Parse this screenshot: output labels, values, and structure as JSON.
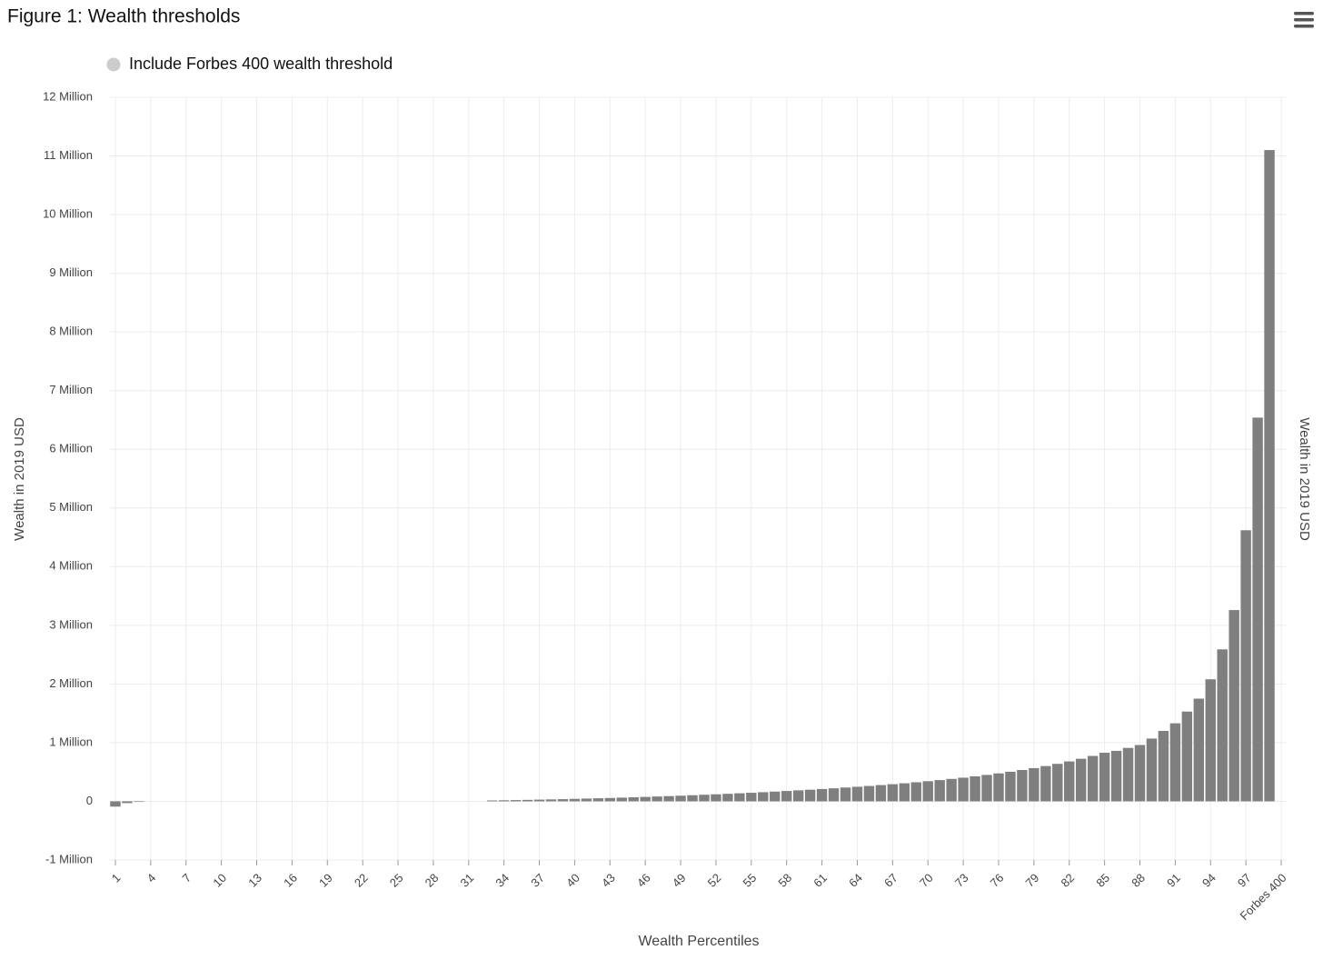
{
  "chart_data": {
    "type": "bar",
    "title": "Figure 1: Wealth thresholds",
    "legend": {
      "label": "Include Forbes 400 wealth threshold",
      "enabled": false,
      "color": "#cccccc"
    },
    "y_label": "Wealth in 2019 USD",
    "y2_label": "Wealth in 2019 USD",
    "x_label": "Wealth Percentiles",
    "color": "#7f7f7f",
    "grid": true,
    "categories": [
      "1",
      null,
      null,
      "4",
      null,
      null,
      "7",
      null,
      null,
      "10",
      null,
      null,
      "13",
      null,
      null,
      "16",
      null,
      null,
      "19",
      null,
      null,
      "22",
      null,
      null,
      "25",
      null,
      null,
      "28",
      null,
      null,
      "31",
      null,
      null,
      "34",
      null,
      null,
      "37",
      null,
      null,
      "40",
      null,
      null,
      "43",
      null,
      null,
      "46",
      null,
      null,
      "49",
      null,
      null,
      "52",
      null,
      null,
      "55",
      null,
      null,
      "58",
      null,
      null,
      "61",
      null,
      null,
      "64",
      null,
      null,
      "67",
      null,
      null,
      "70",
      null,
      null,
      "73",
      null,
      null,
      "76",
      null,
      null,
      "79",
      null,
      null,
      "82",
      null,
      null,
      "85",
      null,
      null,
      "88",
      null,
      null,
      "91",
      null,
      null,
      "94",
      null,
      null,
      "97",
      null,
      null,
      "Forbes 400"
    ],
    "values": [
      -90000,
      -30000,
      -10000,
      0,
      0,
      0,
      0,
      0,
      0,
      0,
      0,
      0,
      0,
      0,
      0,
      0,
      0,
      0,
      0,
      0,
      0,
      0,
      0,
      0,
      0,
      0,
      0,
      0,
      0,
      0,
      0,
      0,
      15000,
      18000,
      21000,
      25000,
      29000,
      33000,
      37000,
      42000,
      47000,
      52000,
      57000,
      63000,
      69000,
      75000,
      82000,
      89000,
      96000,
      104000,
      112000,
      120000,
      128000,
      137000,
      146000,
      156000,
      166000,
      176000,
      187000,
      198000,
      210000,
      222000,
      235000,
      248000,
      262000,
      277000,
      292000,
      308000,
      325000,
      343000,
      362000,
      382000,
      403000,
      426000,
      450000,
      476000,
      504000,
      534000,
      566000,
      601000,
      639000,
      680000,
      725000,
      774000,
      828000,
      860000,
      910000,
      960000,
      1070000,
      1200000,
      1330000,
      1530000,
      1750000,
      2080000,
      2590000,
      3260000,
      4620000,
      6540000,
      11100000,
      null
    ],
    "ylim": [
      -1000000,
      12000000
    ],
    "yticks": [
      {
        "value": -1000000,
        "label": "-1 Million"
      },
      0,
      {
        "value": 1000000,
        "label": "1 Million"
      },
      {
        "value": 2000000,
        "label": "2 Million"
      },
      {
        "value": 3000000,
        "label": "3 Million"
      },
      {
        "value": 4000000,
        "label": "4 Million"
      },
      {
        "value": 5000000,
        "label": "5 Million"
      },
      {
        "value": 6000000,
        "label": "6 Million"
      },
      {
        "value": 7000000,
        "label": "7 Million"
      },
      {
        "value": 8000000,
        "label": "8 Million"
      },
      {
        "value": 9000000,
        "label": "9 Million"
      },
      {
        "value": 10000000,
        "label": "10 Million"
      },
      {
        "value": 11000000,
        "label": "11 Million"
      },
      {
        "value": 12000000,
        "label": "12 Million"
      }
    ]
  }
}
